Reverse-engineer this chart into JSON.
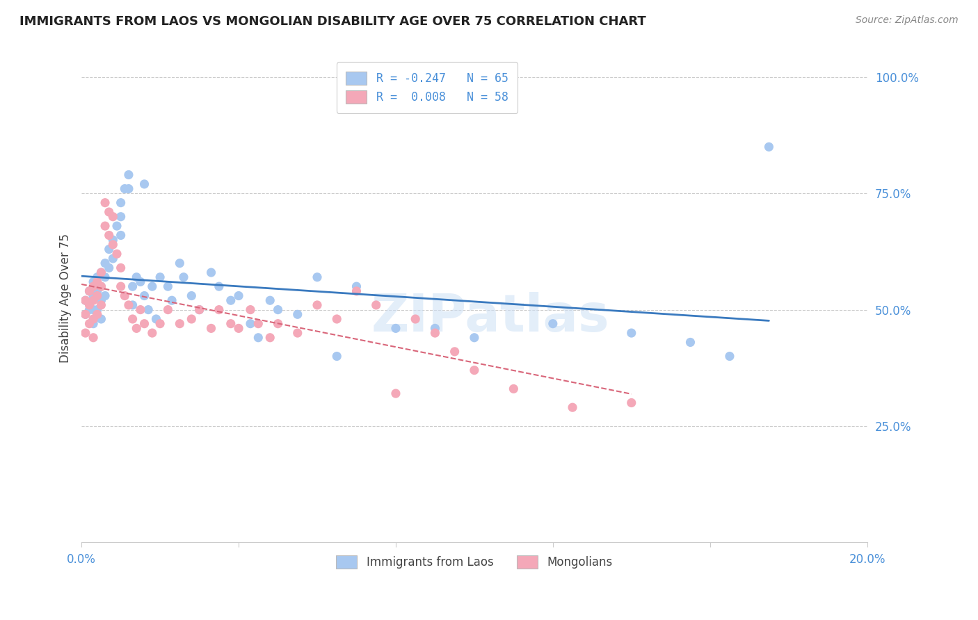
{
  "title": "IMMIGRANTS FROM LAOS VS MONGOLIAN DISABILITY AGE OVER 75 CORRELATION CHART",
  "source": "Source: ZipAtlas.com",
  "ylabel": "Disability Age Over 75",
  "xlim": [
    0.0,
    0.2
  ],
  "ylim": [
    0.0,
    1.05
  ],
  "y_ticks_right": [
    0.25,
    0.5,
    0.75,
    1.0
  ],
  "y_tick_labels_right": [
    "25.0%",
    "50.0%",
    "75.0%",
    "100.0%"
  ],
  "legend_label_blue": "R = -0.247   N = 65",
  "legend_label_pink": "R =  0.008   N = 58",
  "legend_label_bottom_blue": "Immigrants from Laos",
  "legend_label_bottom_pink": "Mongolians",
  "color_blue": "#a8c8f0",
  "color_pink": "#f4a8b8",
  "color_trend_blue": "#3a7abf",
  "color_trend_pink": "#d9667a",
  "color_axis": "#4a90d9",
  "color_title": "#222222",
  "color_source": "#888888",
  "blue_x": [
    0.001,
    0.001,
    0.002,
    0.002,
    0.003,
    0.003,
    0.003,
    0.003,
    0.004,
    0.004,
    0.004,
    0.005,
    0.005,
    0.005,
    0.005,
    0.006,
    0.006,
    0.006,
    0.007,
    0.007,
    0.008,
    0.008,
    0.009,
    0.01,
    0.01,
    0.01,
    0.011,
    0.012,
    0.012,
    0.013,
    0.013,
    0.014,
    0.015,
    0.016,
    0.016,
    0.017,
    0.018,
    0.019,
    0.02,
    0.022,
    0.023,
    0.025,
    0.026,
    0.028,
    0.03,
    0.033,
    0.035,
    0.038,
    0.04,
    0.043,
    0.045,
    0.048,
    0.05,
    0.055,
    0.06,
    0.065,
    0.07,
    0.08,
    0.09,
    0.1,
    0.12,
    0.14,
    0.155,
    0.165,
    0.175
  ],
  "blue_y": [
    0.52,
    0.49,
    0.54,
    0.5,
    0.56,
    0.53,
    0.5,
    0.47,
    0.57,
    0.54,
    0.5,
    0.58,
    0.55,
    0.52,
    0.48,
    0.6,
    0.57,
    0.53,
    0.63,
    0.59,
    0.65,
    0.61,
    0.68,
    0.73,
    0.7,
    0.66,
    0.76,
    0.79,
    0.76,
    0.55,
    0.51,
    0.57,
    0.56,
    0.53,
    0.77,
    0.5,
    0.55,
    0.48,
    0.57,
    0.55,
    0.52,
    0.6,
    0.57,
    0.53,
    0.5,
    0.58,
    0.55,
    0.52,
    0.53,
    0.47,
    0.44,
    0.52,
    0.5,
    0.49,
    0.57,
    0.4,
    0.55,
    0.46,
    0.46,
    0.44,
    0.47,
    0.45,
    0.43,
    0.4,
    0.85
  ],
  "pink_x": [
    0.001,
    0.001,
    0.001,
    0.002,
    0.002,
    0.002,
    0.003,
    0.003,
    0.003,
    0.003,
    0.004,
    0.004,
    0.004,
    0.005,
    0.005,
    0.005,
    0.006,
    0.006,
    0.007,
    0.007,
    0.008,
    0.008,
    0.009,
    0.01,
    0.01,
    0.011,
    0.012,
    0.013,
    0.014,
    0.015,
    0.016,
    0.018,
    0.02,
    0.022,
    0.025,
    0.028,
    0.03,
    0.033,
    0.035,
    0.038,
    0.04,
    0.043,
    0.045,
    0.048,
    0.05,
    0.055,
    0.06,
    0.065,
    0.07,
    0.075,
    0.08,
    0.085,
    0.09,
    0.095,
    0.1,
    0.11,
    0.125,
    0.14
  ],
  "pink_y": [
    0.52,
    0.49,
    0.45,
    0.54,
    0.51,
    0.47,
    0.55,
    0.52,
    0.48,
    0.44,
    0.56,
    0.53,
    0.49,
    0.58,
    0.55,
    0.51,
    0.73,
    0.68,
    0.71,
    0.66,
    0.7,
    0.64,
    0.62,
    0.59,
    0.55,
    0.53,
    0.51,
    0.48,
    0.46,
    0.5,
    0.47,
    0.45,
    0.47,
    0.5,
    0.47,
    0.48,
    0.5,
    0.46,
    0.5,
    0.47,
    0.46,
    0.5,
    0.47,
    0.44,
    0.47,
    0.45,
    0.51,
    0.48,
    0.54,
    0.51,
    0.32,
    0.48,
    0.45,
    0.41,
    0.37,
    0.33,
    0.29,
    0.3
  ],
  "watermark": "ZIPatlas",
  "grid_color": "#cccccc"
}
